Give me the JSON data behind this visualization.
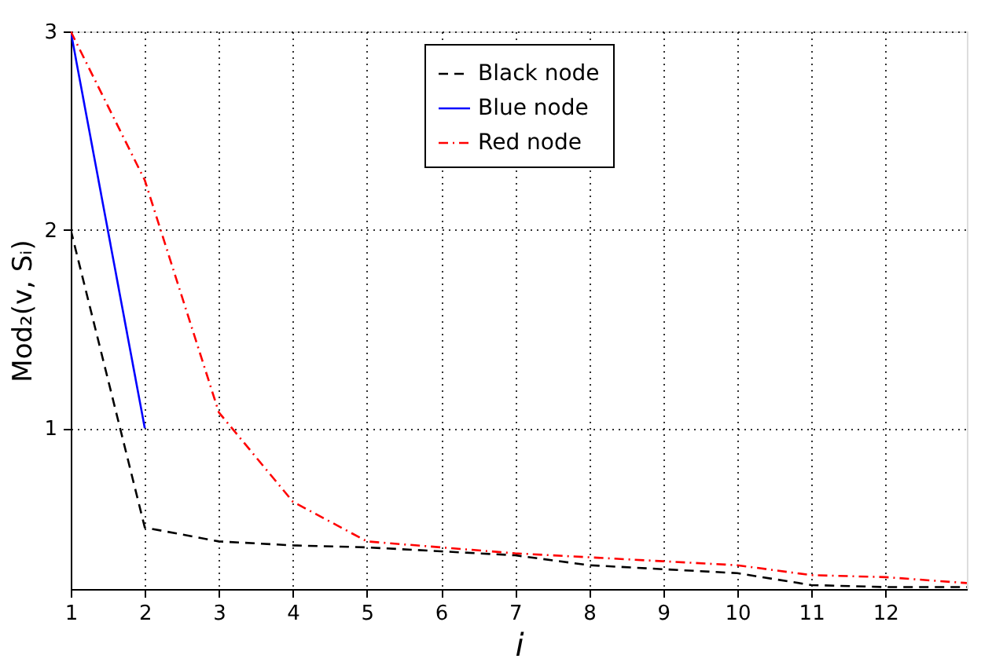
{
  "chart_data": {
    "type": "line",
    "xlabel": "i",
    "ylabel": "Mod₂(v, Sᵢ)",
    "xlim": [
      1,
      13.1
    ],
    "xticks": [
      1,
      2,
      3,
      4,
      5,
      6,
      7,
      8,
      9,
      10,
      11,
      12
    ],
    "ylim": [
      0.19,
      3
    ],
    "yticks": [
      1,
      2,
      3
    ],
    "grid": true,
    "legend": "top",
    "series": [
      {
        "name": "Black node",
        "color": "#000000",
        "line_style": "dashed",
        "x": [
          1,
          2,
          3,
          4,
          5,
          6,
          7,
          8,
          9,
          10,
          11,
          12,
          13.1
        ],
        "values": [
          2.0,
          0.5,
          0.43,
          0.41,
          0.4,
          0.38,
          0.36,
          0.31,
          0.29,
          0.27,
          0.21,
          0.2,
          0.2
        ]
      },
      {
        "name": "Blue node",
        "color": "#0000ff",
        "line_style": "solid",
        "x": [
          1,
          2
        ],
        "values": [
          3.0,
          1.0
        ]
      },
      {
        "name": "Red node",
        "color": "#ff0000",
        "line_style": "dashdot",
        "x": [
          1,
          2,
          3,
          4,
          5,
          6,
          7,
          8,
          9,
          10,
          11,
          12,
          13.1
        ],
        "values": [
          3.0,
          2.25,
          1.08,
          0.63,
          0.43,
          0.4,
          0.37,
          0.35,
          0.33,
          0.31,
          0.26,
          0.25,
          0.22
        ]
      }
    ]
  }
}
